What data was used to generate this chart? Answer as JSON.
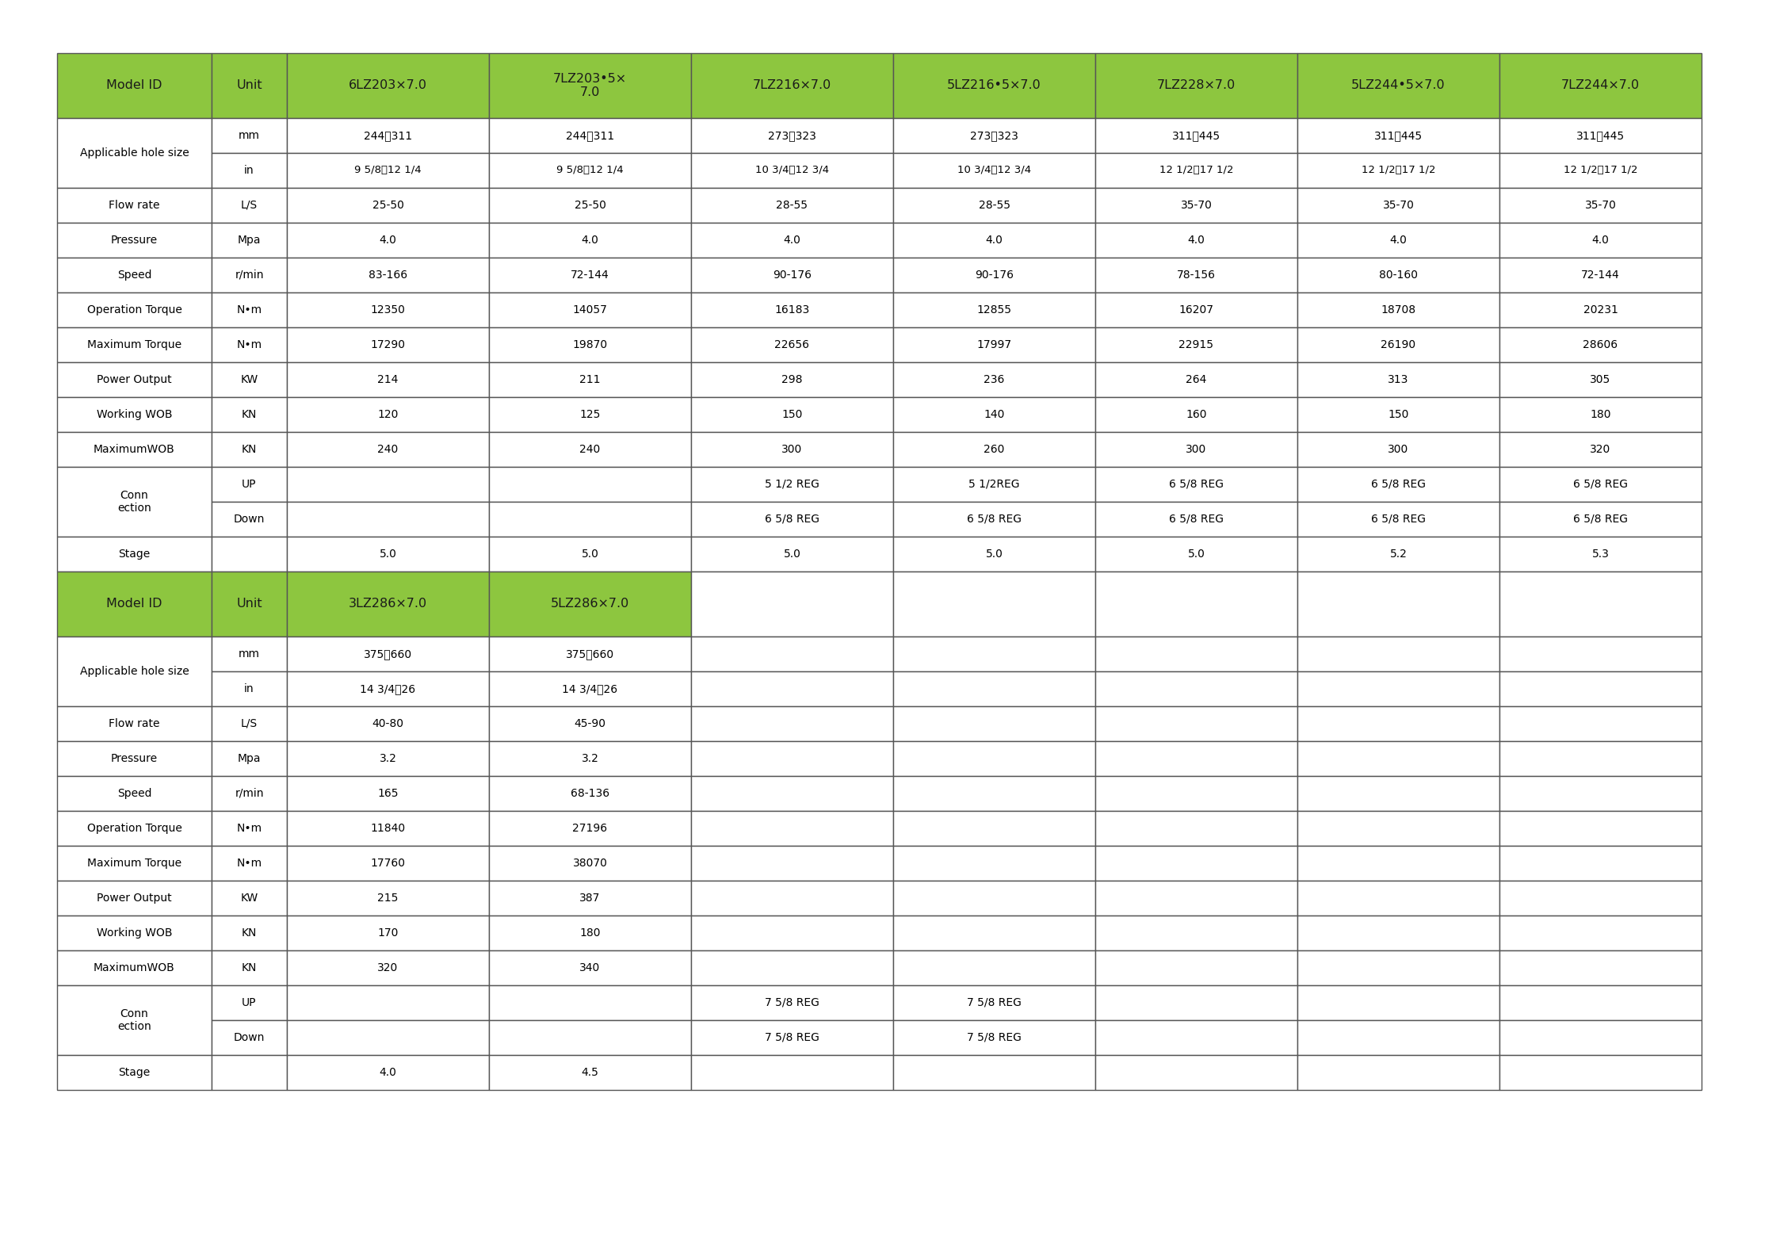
{
  "green_color": "#8DC63F",
  "white_color": "#FFFFFF",
  "border_color": "#555555",
  "text_color": "#000000",
  "green_text_color": "#000000",
  "fig_bg": "#FFFFFF",
  "header1": {
    "col0": "Model ID",
    "col1": "Unit",
    "col2": "6LZ203×7.0",
    "col3": "7LZ203•5×\n7.0",
    "col4": "7LZ216×7.0",
    "col5": "5LZ216•5×7.0",
    "col6": "7LZ228×7.0",
    "col7": "5LZ244•5×7.0",
    "col8": "7LZ244×7.0"
  },
  "rows1": [
    [
      "Applicable hole size",
      "mm",
      "244～311",
      "244～311",
      "273～323",
      "273～323",
      "311～445",
      "311～445",
      "311～445"
    ],
    [
      "Applicable hole size",
      "in",
      "9 5/8～12 1/4",
      "9 5/8～12 1/4",
      "10 3/4～12 3/4",
      "10 3/4～12 3/4",
      "12 1/2～17 1/2",
      "12 1/2～17 1/2",
      "12 1/2～17 1/2"
    ],
    [
      "Flow rate",
      "L/S",
      "25-50",
      "25-50",
      "28-55",
      "28-55",
      "35-70",
      "35-70",
      "35-70"
    ],
    [
      "Pressure",
      "Mpa",
      "4.0",
      "4.0",
      "4.0",
      "4.0",
      "4.0",
      "4.0",
      "4.0"
    ],
    [
      "Speed",
      "r/min",
      "83-166",
      "72-144",
      "90-176",
      "90-176",
      "78-156",
      "80-160",
      "72-144"
    ],
    [
      "Operation Torque",
      "N•m",
      "12350",
      "14057",
      "16183",
      "12855",
      "16207",
      "18708",
      "20231"
    ],
    [
      "Maximum Torque",
      "N•m",
      "17290",
      "19870",
      "22656",
      "17997",
      "22915",
      "26190",
      "28606"
    ],
    [
      "Power Output",
      "KW",
      "214",
      "211",
      "298",
      "236",
      "264",
      "313",
      "305"
    ],
    [
      "Working WOB",
      "KN",
      "120",
      "125",
      "150",
      "140",
      "160",
      "150",
      "180"
    ],
    [
      "MaximumWOB",
      "KN",
      "240",
      "240",
      "300",
      "260",
      "300",
      "300",
      "320"
    ],
    [
      "Conn\nection",
      "UP",
      "",
      "5 1/2 REG",
      "5 1/2REG",
      "6 5/8 REG",
      "6 5/8 REG",
      "6 5/8 REG",
      "6 5/8 REG",
      "6 5/8 REG"
    ],
    [
      "Conn\nection",
      "Down",
      "",
      "6 5/8 REG",
      "6 5/8 REG",
      "6 5/8 REG",
      "6 5/8 REG",
      "6 5/8 REG",
      "6 5/8 REG",
      "6 5/8 REG"
    ],
    [
      "Stage",
      "",
      "5.0",
      "5.0",
      "5.0",
      "5.0",
      "5.0",
      "5.2",
      "5.3"
    ]
  ],
  "header2": {
    "col0": "Model ID",
    "col1": "Unit",
    "col2": "3LZ286×7.0",
    "col3": "5LZ286×7.0",
    "col4": "",
    "col5": "",
    "col6": "",
    "col7": "",
    "col8": ""
  },
  "rows2": [
    [
      "Applicable hole size",
      "mm",
      "375～660",
      "375～660",
      "",
      "",
      "",
      "",
      ""
    ],
    [
      "Applicable hole size",
      "in",
      "14 3/4～26",
      "14 3/4～26",
      "",
      "",
      "",
      "",
      ""
    ],
    [
      "Flow rate",
      "L/S",
      "40-80",
      "45-90",
      "",
      "",
      "",
      "",
      ""
    ],
    [
      "Pressure",
      "Mpa",
      "3.2",
      "3.2",
      "",
      "",
      "",
      "",
      ""
    ],
    [
      "Speed",
      "r/min",
      "165",
      "68-136",
      "",
      "",
      "",
      "",
      ""
    ],
    [
      "Operation Torque",
      "N•m",
      "11840",
      "27196",
      "",
      "",
      "",
      "",
      ""
    ],
    [
      "Maximum Torque",
      "N•m",
      "17760",
      "38070",
      "",
      "",
      "",
      "",
      ""
    ],
    [
      "Power Output",
      "KW",
      "215",
      "387",
      "",
      "",
      "",
      "",
      ""
    ],
    [
      "Working WOB",
      "KN",
      "170",
      "180",
      "",
      "",
      "",
      "",
      ""
    ],
    [
      "MaximumWOB",
      "KN",
      "320",
      "340",
      "",
      "",
      "",
      "",
      ""
    ],
    [
      "Conn\nection",
      "UP",
      "",
      "7 5/8 REG",
      "7 5/8 REG",
      "",
      "",
      "",
      "",
      ""
    ],
    [
      "Conn\nection",
      "Down",
      "",
      "7 5/8 REG",
      "7 5/8 REG",
      "",
      "",
      "",
      "",
      ""
    ],
    [
      "Stage",
      "",
      "4.0",
      "4.5",
      "",
      "",
      "",
      "",
      ""
    ]
  ]
}
